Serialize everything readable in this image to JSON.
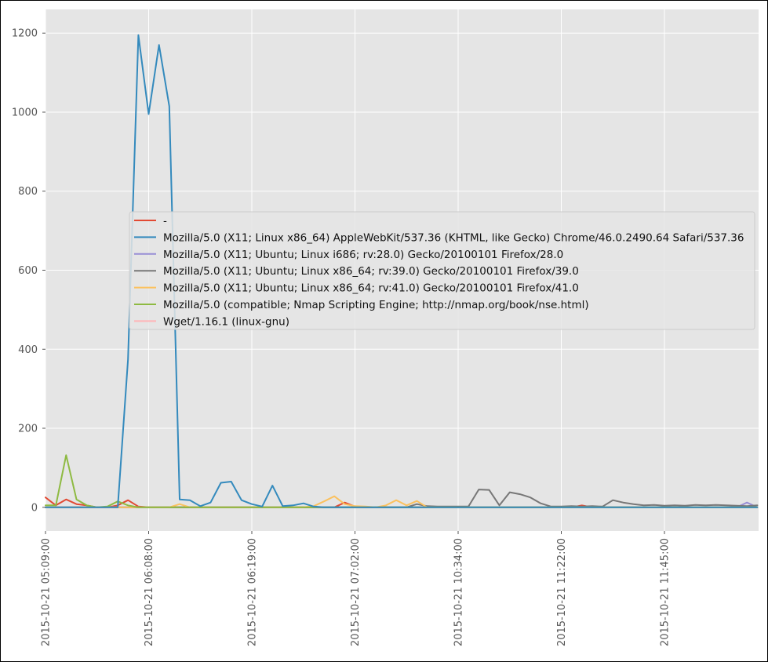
{
  "chart_data": {
    "type": "line",
    "title": "",
    "xlabel": "",
    "ylabel": "",
    "ylim": [
      -60,
      1260
    ],
    "grid": true,
    "legend_position": "center",
    "y_ticks": [
      0,
      200,
      400,
      600,
      800,
      1000,
      1200
    ],
    "x_ticks": [
      {
        "i": 0,
        "label": "2015-10-21 05:09:00"
      },
      {
        "i": 10,
        "label": "2015-10-21 06:08:00"
      },
      {
        "i": 20,
        "label": "2015-10-21 06:19:00"
      },
      {
        "i": 30,
        "label": "2015-10-21 07:02:00"
      },
      {
        "i": 40,
        "label": "2015-10-21 10:34:00"
      },
      {
        "i": 50,
        "label": "2015-10-21 11:22:00"
      },
      {
        "i": 60,
        "label": "2015-10-21 11:45:00"
      }
    ],
    "series": [
      {
        "name": "-",
        "color": "#E24A33",
        "values": [
          25,
          5,
          20,
          8,
          5,
          0,
          0,
          5,
          18,
          2,
          0,
          0,
          0,
          0,
          0,
          0,
          0,
          0,
          0,
          0,
          0,
          0,
          0,
          0,
          0,
          0,
          0,
          0,
          0,
          12,
          2,
          0,
          0,
          0,
          0,
          0,
          0,
          0,
          0,
          0,
          0,
          0,
          0,
          0,
          0,
          0,
          0,
          0,
          0,
          0,
          0,
          0,
          5,
          0,
          0,
          0,
          0,
          0,
          0,
          0,
          0,
          0,
          0,
          0,
          0,
          0,
          0,
          0,
          0,
          0
        ]
      },
      {
        "name": "Mozilla/5.0 (X11; Linux x86_64) AppleWebKit/537.36 (KHTML, like Gecko) Chrome/46.0.2490.64 Safari/537.36",
        "color": "#348ABD",
        "values": [
          0,
          0,
          0,
          0,
          0,
          0,
          0,
          0,
          375,
          1195,
          995,
          1170,
          1015,
          20,
          18,
          3,
          12,
          62,
          65,
          18,
          8,
          2,
          55,
          3,
          5,
          10,
          2,
          0,
          0,
          0,
          0,
          0,
          0,
          0,
          0,
          0,
          0,
          0,
          0,
          0,
          0,
          0,
          0,
          0,
          0,
          0,
          0,
          0,
          0,
          0,
          0,
          0,
          0,
          0,
          0,
          0,
          0,
          0,
          0,
          0,
          0,
          0,
          0,
          0,
          0,
          0,
          0,
          0,
          0,
          0
        ]
      },
      {
        "name": "Mozilla/5.0 (X11; Ubuntu; Linux i686; rv:28.0) Gecko/20100101 Firefox/28.0",
        "color": "#988ED5",
        "values": [
          0,
          0,
          0,
          0,
          0,
          0,
          0,
          0,
          0,
          0,
          0,
          0,
          0,
          0,
          0,
          0,
          0,
          0,
          0,
          0,
          0,
          0,
          0,
          0,
          0,
          0,
          0,
          0,
          0,
          0,
          0,
          0,
          0,
          0,
          0,
          0,
          0,
          0,
          0,
          0,
          0,
          0,
          0,
          0,
          0,
          0,
          0,
          0,
          0,
          0,
          0,
          0,
          0,
          0,
          0,
          0,
          0,
          0,
          0,
          0,
          0,
          0,
          0,
          0,
          0,
          0,
          0,
          0,
          12,
          0
        ]
      },
      {
        "name": "Mozilla/5.0 (X11; Ubuntu; Linux x86_64; rv:39.0) Gecko/20100101 Firefox/39.0",
        "color": "#777777",
        "values": [
          0,
          0,
          0,
          0,
          0,
          0,
          0,
          0,
          0,
          0,
          0,
          0,
          0,
          0,
          0,
          0,
          0,
          0,
          0,
          0,
          0,
          0,
          0,
          0,
          0,
          0,
          0,
          0,
          0,
          0,
          0,
          0,
          0,
          0,
          0,
          0,
          8,
          3,
          2,
          2,
          2,
          2,
          45,
          44,
          5,
          38,
          33,
          25,
          10,
          2,
          2,
          3,
          2,
          3,
          2,
          18,
          12,
          8,
          5,
          6,
          4,
          5,
          4,
          6,
          5,
          6,
          5,
          4,
          3,
          5
        ]
      },
      {
        "name": "Mozilla/5.0 (X11; Ubuntu; Linux x86_64; rv:41.0) Gecko/20100101 Firefox/41.0",
        "color": "#FBC15E",
        "values": [
          0,
          0,
          0,
          0,
          0,
          0,
          0,
          0,
          0,
          0,
          0,
          0,
          0,
          8,
          0,
          0,
          0,
          0,
          0,
          0,
          0,
          0,
          0,
          0,
          0,
          0,
          3,
          15,
          28,
          8,
          3,
          2,
          0,
          5,
          18,
          5,
          16,
          0,
          0,
          0,
          0,
          0,
          0,
          0,
          0,
          0,
          0,
          0,
          0,
          0,
          0,
          0,
          0,
          0,
          0,
          0,
          0,
          0,
          0,
          0,
          0,
          0,
          0,
          0,
          0,
          0,
          0,
          0,
          0,
          0
        ]
      },
      {
        "name": "Mozilla/5.0 (compatible; Nmap Scripting Engine; http://nmap.org/book/nse.html)",
        "color": "#8EBA42",
        "values": [
          5,
          5,
          132,
          20,
          5,
          0,
          2,
          15,
          5,
          0,
          0,
          0,
          0,
          0,
          0,
          0,
          0,
          0,
          0,
          0,
          0,
          0,
          0,
          0,
          0,
          0,
          0,
          0,
          0,
          0,
          0,
          0,
          0,
          0,
          0,
          0,
          0,
          0,
          0,
          0,
          0,
          0,
          0,
          0,
          0,
          0,
          0,
          0,
          0,
          0,
          0,
          0,
          0,
          0,
          0,
          0,
          0,
          0,
          0,
          0,
          0,
          0,
          0,
          0,
          0,
          0,
          0,
          0,
          0,
          0
        ]
      },
      {
        "name": "Wget/1.16.1 (linux-gnu)",
        "color": "#FFB5B8",
        "values": [
          0,
          0,
          0,
          0,
          0,
          0,
          0,
          0,
          0,
          0,
          0,
          0,
          0,
          0,
          0,
          0,
          0,
          0,
          0,
          0,
          0,
          0,
          0,
          0,
          0,
          0,
          0,
          0,
          0,
          0,
          0,
          0,
          0,
          0,
          0,
          0,
          0,
          0,
          0,
          0,
          0,
          0,
          0,
          0,
          0,
          0,
          0,
          0,
          0,
          0,
          0,
          0,
          0,
          0,
          0,
          0,
          0,
          0,
          0,
          0,
          0,
          0,
          0,
          0,
          0,
          0,
          0,
          0,
          0,
          0
        ]
      }
    ]
  }
}
